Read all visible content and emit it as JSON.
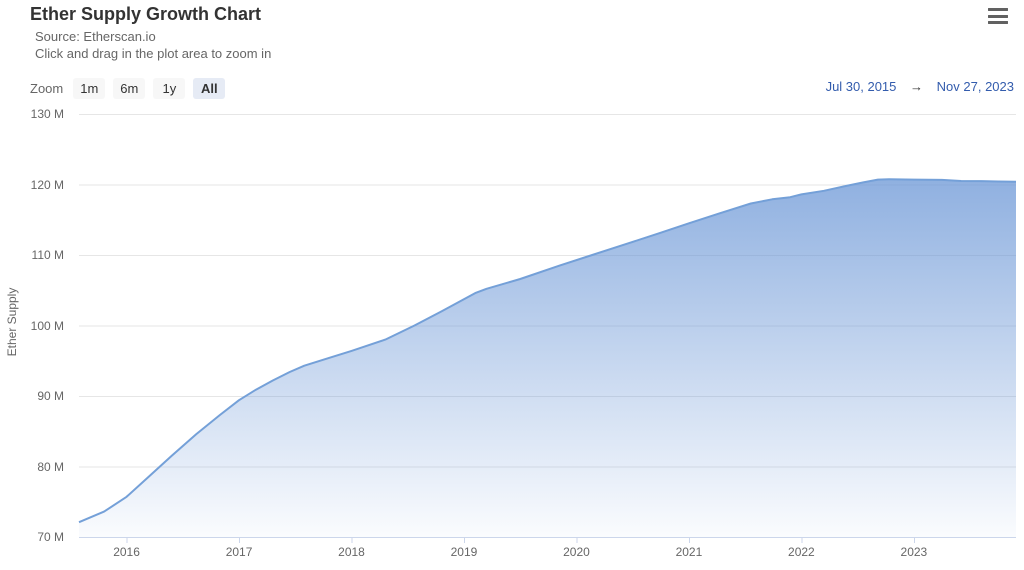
{
  "header": {
    "title": "Ether Supply Growth Chart",
    "source_line": "Source: Etherscan.io",
    "hint_line": "Click and drag in the plot area to zoom in"
  },
  "menu": {
    "icon": "hamburger-menu-icon"
  },
  "range_selector": {
    "zoom_label": "Zoom",
    "buttons": [
      {
        "label": "1m",
        "selected": false
      },
      {
        "label": "6m",
        "selected": false
      },
      {
        "label": "1y",
        "selected": false
      },
      {
        "label": "All",
        "selected": true
      }
    ],
    "from_date": "Jul 30, 2015",
    "arrow": "→",
    "to_date": "Nov 27, 2023"
  },
  "chart_data": {
    "type": "area",
    "title": "Ether Supply Growth Chart",
    "xlabel": "",
    "ylabel": "Ether Supply",
    "x_range": [
      2015.577,
      2023.908
    ],
    "y_range": [
      70,
      130
    ],
    "grid": true,
    "y_ticks": [
      {
        "value": 70,
        "label": "70 M"
      },
      {
        "value": 80,
        "label": "80 M"
      },
      {
        "value": 90,
        "label": "90 M"
      },
      {
        "value": 100,
        "label": "100 M"
      },
      {
        "value": 110,
        "label": "110 M"
      },
      {
        "value": 120,
        "label": "120 M"
      },
      {
        "value": 130,
        "label": "130 M"
      }
    ],
    "x_ticks": [
      {
        "value": 2016,
        "label": "2016"
      },
      {
        "value": 2017,
        "label": "2017"
      },
      {
        "value": 2018,
        "label": "2018"
      },
      {
        "value": 2019,
        "label": "2019"
      },
      {
        "value": 2020,
        "label": "2020"
      },
      {
        "value": 2021,
        "label": "2021"
      },
      {
        "value": 2022,
        "label": "2022"
      },
      {
        "value": 2023,
        "label": "2023"
      }
    ],
    "series": [
      {
        "name": "Ether Supply",
        "unit": "million ETH",
        "points": [
          [
            2015.577,
            72.1
          ],
          [
            2015.8,
            73.6
          ],
          [
            2016.0,
            75.7
          ],
          [
            2016.2,
            78.6
          ],
          [
            2016.4,
            81.5
          ],
          [
            2016.62,
            84.6
          ],
          [
            2016.83,
            87.3
          ],
          [
            2017.0,
            89.4
          ],
          [
            2017.15,
            90.9
          ],
          [
            2017.3,
            92.2
          ],
          [
            2017.45,
            93.4
          ],
          [
            2017.58,
            94.3
          ],
          [
            2017.8,
            95.4
          ],
          [
            2018.0,
            96.4
          ],
          [
            2018.3,
            98.0
          ],
          [
            2018.56,
            100.0
          ],
          [
            2018.8,
            102.0
          ],
          [
            2019.1,
            104.6
          ],
          [
            2019.2,
            105.2
          ],
          [
            2019.5,
            106.6
          ],
          [
            2019.85,
            108.5
          ],
          [
            2020.14,
            110.0
          ],
          [
            2020.45,
            111.6
          ],
          [
            2020.74,
            113.1
          ],
          [
            2021.0,
            114.5
          ],
          [
            2021.27,
            115.9
          ],
          [
            2021.55,
            117.3
          ],
          [
            2021.74,
            117.9
          ],
          [
            2021.9,
            118.2
          ],
          [
            2022.0,
            118.6
          ],
          [
            2022.2,
            119.1
          ],
          [
            2022.4,
            119.8
          ],
          [
            2022.55,
            120.3
          ],
          [
            2022.68,
            120.7
          ],
          [
            2022.78,
            120.75
          ],
          [
            2023.0,
            120.7
          ],
          [
            2023.25,
            120.65
          ],
          [
            2023.42,
            120.5
          ],
          [
            2023.6,
            120.48
          ],
          [
            2023.75,
            120.42
          ],
          [
            2023.908,
            120.4
          ]
        ]
      }
    ],
    "colors": {
      "line": "#74a0d8",
      "fill_top": "rgba(106,150,214,0.75)",
      "fill_bottom": "rgba(106,150,214,0.03)",
      "grid": "#e6e6e6",
      "axis": "#ccd6eb",
      "label": "#666666",
      "date_link": "#335cad"
    }
  }
}
